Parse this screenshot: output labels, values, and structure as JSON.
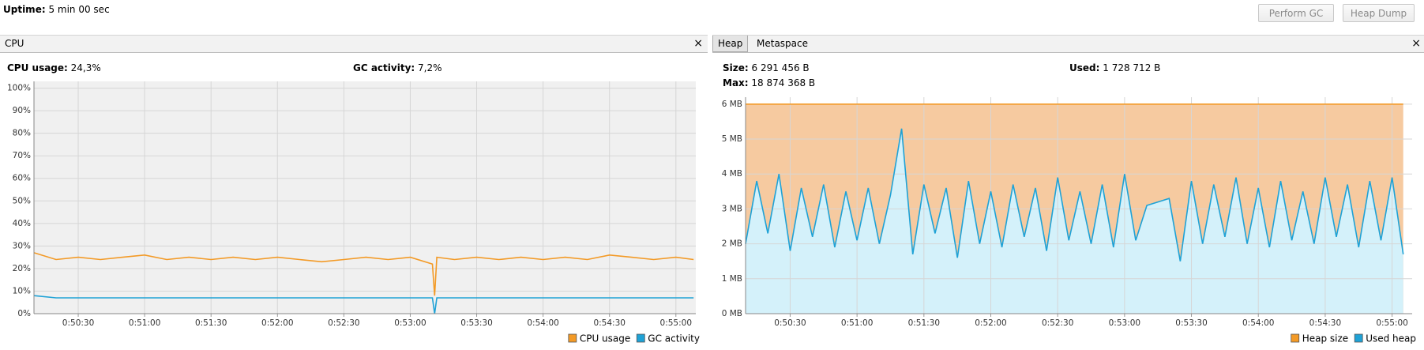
{
  "header": {
    "uptime_label": "Uptime:",
    "uptime": "5 min 00 sec",
    "buttons": [
      "Perform GC",
      "Heap Dump"
    ]
  },
  "cpu_panel": {
    "tab": "CPU",
    "close": "×",
    "stats": [
      {
        "label": "CPU usage:",
        "value": "24,3%"
      },
      {
        "label": "GC activity:",
        "value": "7,2%"
      }
    ]
  },
  "heap_panel": {
    "tabs": [
      "Heap",
      "Metaspace"
    ],
    "close": "×",
    "stats": [
      {
        "label": "Size:",
        "value": "6 291 456 B"
      },
      {
        "label": "Used:",
        "value": "1 728 712 B"
      },
      {
        "label": "Max:",
        "value": "18 874 368 B"
      }
    ]
  },
  "chart_data": [
    {
      "type": "line",
      "plot_background": "#f0f0f0",
      "grid": true,
      "xlim": [
        "0:50:10",
        "0:55:09"
      ],
      "xticks": [
        "0:50:30",
        "0:51:00",
        "0:51:30",
        "0:52:00",
        "0:52:30",
        "0:53:00",
        "0:53:30",
        "0:54:00",
        "0:54:30",
        "0:55:00"
      ],
      "ylim": [
        0,
        103
      ],
      "yticks": [
        {
          "value": 0,
          "label": "0%"
        },
        {
          "value": 10,
          "label": "10%"
        },
        {
          "value": 20,
          "label": "20%"
        },
        {
          "value": 30,
          "label": "30%"
        },
        {
          "value": 40,
          "label": "40%"
        },
        {
          "value": 50,
          "label": "50%"
        },
        {
          "value": 60,
          "label": "60%"
        },
        {
          "value": 70,
          "label": "70%"
        },
        {
          "value": 80,
          "label": "80%"
        },
        {
          "value": 90,
          "label": "90%"
        },
        {
          "value": 100,
          "label": "100%"
        }
      ],
      "x": [
        "0:50:10",
        "0:50:20",
        "0:50:30",
        "0:50:40",
        "0:50:50",
        "0:51:00",
        "0:51:10",
        "0:51:20",
        "0:51:30",
        "0:51:40",
        "0:51:50",
        "0:52:00",
        "0:52:10",
        "0:52:20",
        "0:52:30",
        "0:52:40",
        "0:52:50",
        "0:53:00",
        "0:53:10",
        "0:53:11",
        "0:53:12",
        "0:53:20",
        "0:53:30",
        "0:53:40",
        "0:53:50",
        "0:54:00",
        "0:54:10",
        "0:54:20",
        "0:54:30",
        "0:54:40",
        "0:54:50",
        "0:55:00",
        "0:55:08"
      ],
      "series": [
        {
          "name": "CPU usage",
          "color": "#f39a26",
          "values": [
            27,
            24,
            25,
            24,
            25,
            26,
            24,
            25,
            24,
            25,
            24,
            25,
            24,
            23,
            24,
            25,
            24,
            25,
            22,
            8,
            25,
            24,
            25,
            24,
            25,
            24,
            25,
            24,
            26,
            25,
            24,
            25,
            24
          ]
        },
        {
          "name": "GC activity",
          "color": "#1fa2d6",
          "values": [
            8,
            7,
            7,
            7,
            7,
            7,
            7,
            7,
            7,
            7,
            7,
            7,
            7,
            7,
            7,
            7,
            7,
            7,
            7,
            0,
            7,
            7,
            7,
            7,
            7,
            7,
            7,
            7,
            7,
            7,
            7,
            7,
            7
          ]
        }
      ]
    },
    {
      "type": "area",
      "plot_background": "#ffffff",
      "grid": true,
      "xlim": [
        "0:50:10",
        "0:55:09"
      ],
      "xticks": [
        "0:50:30",
        "0:51:00",
        "0:51:30",
        "0:52:00",
        "0:52:30",
        "0:53:00",
        "0:53:30",
        "0:54:00",
        "0:54:30",
        "0:55:00"
      ],
      "ylim": [
        0,
        6.2
      ],
      "yticks": [
        {
          "value": 0,
          "label": "0 MB"
        },
        {
          "value": 1,
          "label": "1 MB"
        },
        {
          "value": 2,
          "label": "2 MB"
        },
        {
          "value": 3,
          "label": "3 MB"
        },
        {
          "value": 4,
          "label": "4 MB"
        },
        {
          "value": 5,
          "label": "5 MB"
        },
        {
          "value": 6,
          "label": "6 MB"
        }
      ],
      "x": [
        "0:50:10",
        "0:50:15",
        "0:50:20",
        "0:50:25",
        "0:50:30",
        "0:50:35",
        "0:50:40",
        "0:50:45",
        "0:50:50",
        "0:50:55",
        "0:51:00",
        "0:51:05",
        "0:51:10",
        "0:51:15",
        "0:51:20",
        "0:51:25",
        "0:51:30",
        "0:51:35",
        "0:51:40",
        "0:51:45",
        "0:51:50",
        "0:51:55",
        "0:52:00",
        "0:52:05",
        "0:52:10",
        "0:52:15",
        "0:52:20",
        "0:52:25",
        "0:52:30",
        "0:52:35",
        "0:52:40",
        "0:52:45",
        "0:52:50",
        "0:52:55",
        "0:53:00",
        "0:53:05",
        "0:53:10",
        "0:53:15",
        "0:53:20",
        "0:53:25",
        "0:53:30",
        "0:53:35",
        "0:53:40",
        "0:53:45",
        "0:53:50",
        "0:53:55",
        "0:54:00",
        "0:54:05",
        "0:54:10",
        "0:54:15",
        "0:54:20",
        "0:54:25",
        "0:54:30",
        "0:54:35",
        "0:54:40",
        "0:54:45",
        "0:54:50",
        "0:54:55",
        "0:55:00",
        "0:55:05"
      ],
      "series": [
        {
          "name": "Heap size",
          "color": "#f39a26",
          "fill": "#f6caa0",
          "values": [
            6,
            6,
            6,
            6,
            6,
            6,
            6,
            6,
            6,
            6,
            6,
            6,
            6,
            6,
            6,
            6,
            6,
            6,
            6,
            6,
            6,
            6,
            6,
            6,
            6,
            6,
            6,
            6,
            6,
            6,
            6,
            6,
            6,
            6,
            6,
            6,
            6,
            6,
            6,
            6,
            6,
            6,
            6,
            6,
            6,
            6,
            6,
            6,
            6,
            6,
            6,
            6,
            6,
            6,
            6,
            6,
            6,
            6,
            6,
            6
          ]
        },
        {
          "name": "Used heap",
          "color": "#1fa2d6",
          "fill": "#d4f1fa",
          "values": [
            2.0,
            3.8,
            2.3,
            4.0,
            1.8,
            3.6,
            2.2,
            3.7,
            1.9,
            3.5,
            2.1,
            3.6,
            2.0,
            3.4,
            5.3,
            1.7,
            3.7,
            2.3,
            3.6,
            1.6,
            3.8,
            2.0,
            3.5,
            1.9,
            3.7,
            2.2,
            3.6,
            1.8,
            3.9,
            2.1,
            3.5,
            2.0,
            3.7,
            1.9,
            4.0,
            2.1,
            3.1,
            3.2,
            3.3,
            1.5,
            3.8,
            2.0,
            3.7,
            2.2,
            3.9,
            2.0,
            3.6,
            1.9,
            3.8,
            2.1,
            3.5,
            2.0,
            3.9,
            2.2,
            3.7,
            1.9,
            3.8,
            2.1,
            3.9,
            1.7
          ]
        }
      ]
    }
  ]
}
